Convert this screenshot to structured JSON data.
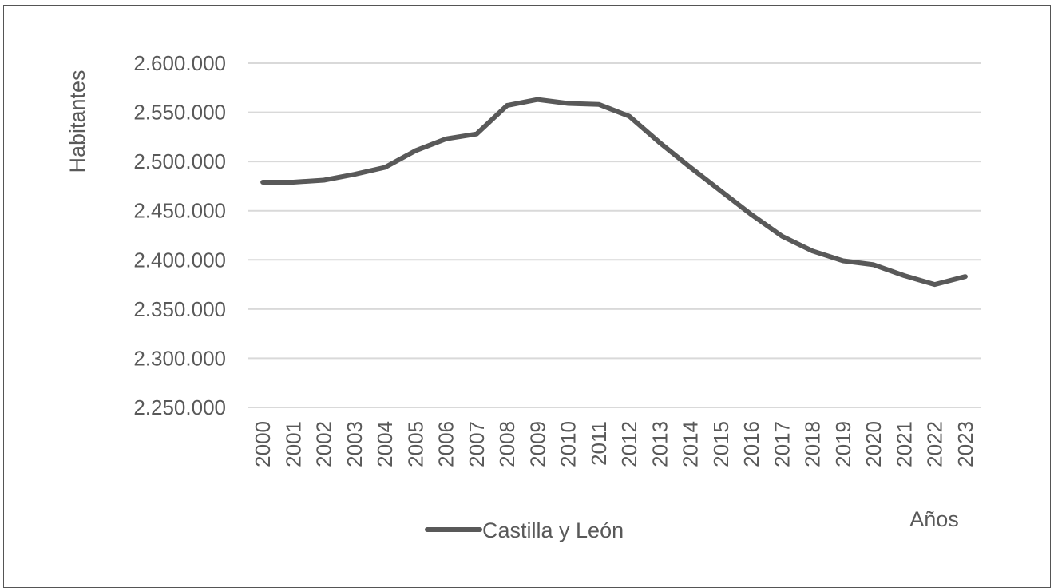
{
  "chart_data": {
    "type": "line",
    "title": "",
    "ylabel": "Habitantes",
    "xlabel": "Años",
    "ylim": [
      2250000,
      2600000
    ],
    "yticks": [
      2250000,
      2300000,
      2350000,
      2400000,
      2450000,
      2500000,
      2550000,
      2600000
    ],
    "ytick_labels": [
      "2.250.000",
      "2.300.000",
      "2.350.000",
      "2.400.000",
      "2.450.000",
      "2.500.000",
      "2.550.000",
      "2.600.000"
    ],
    "categories": [
      "2000",
      "2001",
      "2002",
      "2003",
      "2004",
      "2005",
      "2006",
      "2007",
      "2008",
      "2009",
      "2010",
      "2011",
      "2012",
      "2013",
      "2014",
      "2015",
      "2016",
      "2017",
      "2018",
      "2019",
      "2020",
      "2021",
      "2022",
      "2023"
    ],
    "series": [
      {
        "name": "Castilla y León",
        "color": "#595959",
        "values": [
          2479000,
          2479000,
          2481000,
          2487000,
          2494000,
          2511000,
          2523000,
          2528000,
          2557000,
          2563000,
          2559000,
          2558000,
          2546000,
          2519000,
          2494000,
          2470000,
          2446000,
          2424000,
          2409000,
          2399000,
          2395000,
          2384000,
          2375000,
          2383000
        ]
      }
    ],
    "grid": true,
    "legend_position": "bottom"
  }
}
